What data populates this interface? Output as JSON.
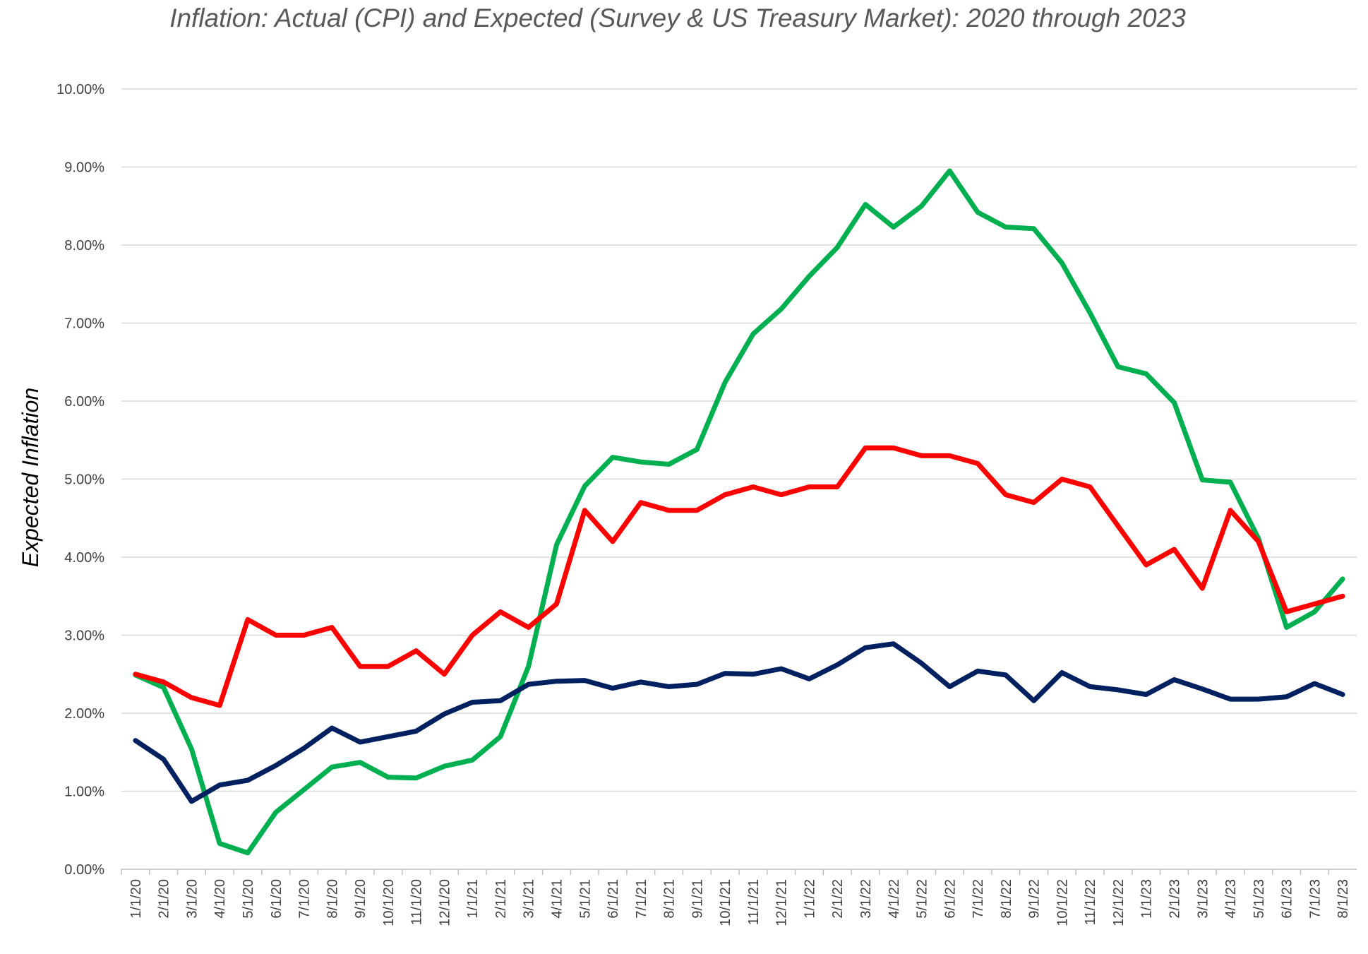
{
  "chart_data": {
    "type": "line",
    "title": "Inflation: Actual (CPI) and Expected (Survey & US Treasury Market): 2020 through 2023",
    "xlabel": "",
    "ylabel": "Expected Inflation",
    "ylim": [
      0,
      10
    ],
    "y_tick_labels": [
      "0.00%",
      "1.00%",
      "2.00%",
      "3.00%",
      "4.00%",
      "5.00%",
      "6.00%",
      "7.00%",
      "8.00%",
      "9.00%",
      "10.00%"
    ],
    "y_ticks": [
      0,
      1,
      2,
      3,
      4,
      5,
      6,
      7,
      8,
      9,
      10
    ],
    "grid": true,
    "legend": "none",
    "categories": [
      "1/1/20",
      "2/1/20",
      "3/1/20",
      "4/1/20",
      "5/1/20",
      "6/1/20",
      "7/1/20",
      "8/1/20",
      "9/1/20",
      "10/1/20",
      "11/1/20",
      "12/1/20",
      "1/1/21",
      "2/1/21",
      "3/1/21",
      "4/1/21",
      "5/1/21",
      "6/1/21",
      "7/1/21",
      "8/1/21",
      "9/1/21",
      "10/1/21",
      "11/1/21",
      "12/1/21",
      "1/1/22",
      "2/1/22",
      "3/1/22",
      "4/1/22",
      "5/1/22",
      "6/1/22",
      "7/1/22",
      "8/1/22",
      "9/1/22",
      "10/1/22",
      "11/1/22",
      "12/1/22",
      "1/1/23",
      "2/1/23",
      "3/1/23",
      "4/1/23",
      "5/1/23",
      "6/1/23",
      "7/1/23",
      "8/1/23"
    ],
    "series": [
      {
        "color": "#00b050",
        "values": [
          2.49,
          2.33,
          1.54,
          0.33,
          0.21,
          0.73,
          1.02,
          1.31,
          1.37,
          1.18,
          1.17,
          1.32,
          1.4,
          1.7,
          2.6,
          4.16,
          4.91,
          5.28,
          5.22,
          5.19,
          5.38,
          6.24,
          6.86,
          7.18,
          7.6,
          7.97,
          8.52,
          8.23,
          8.5,
          8.95,
          8.42,
          8.23,
          8.21,
          7.77,
          7.13,
          6.44,
          6.35,
          5.98,
          4.99,
          4.96,
          4.24,
          3.1,
          3.3,
          3.72
        ]
      },
      {
        "color": "#ff0000",
        "values": [
          2.5,
          2.4,
          2.2,
          2.1,
          3.2,
          3.0,
          3.0,
          3.1,
          2.6,
          2.6,
          2.8,
          2.5,
          3.0,
          3.3,
          3.1,
          3.4,
          4.6,
          4.2,
          4.7,
          4.6,
          4.6,
          4.8,
          4.9,
          4.8,
          4.9,
          4.9,
          5.4,
          5.4,
          5.3,
          5.3,
          5.2,
          4.8,
          4.7,
          5.0,
          4.9,
          4.4,
          3.9,
          4.1,
          3.6,
          4.6,
          4.2,
          3.3,
          3.4,
          3.5
        ]
      },
      {
        "color": "#002060",
        "values": [
          1.65,
          1.41,
          0.87,
          1.08,
          1.14,
          1.33,
          1.55,
          1.81,
          1.63,
          1.7,
          1.77,
          1.99,
          2.14,
          2.16,
          2.37,
          2.41,
          2.42,
          2.32,
          2.4,
          2.34,
          2.37,
          2.51,
          2.5,
          2.57,
          2.44,
          2.62,
          2.84,
          2.89,
          2.64,
          2.34,
          2.54,
          2.49,
          2.16,
          2.52,
          2.34,
          2.3,
          2.24,
          2.43,
          2.31,
          2.18,
          2.18,
          2.21,
          2.38,
          2.24
        ]
      }
    ]
  }
}
